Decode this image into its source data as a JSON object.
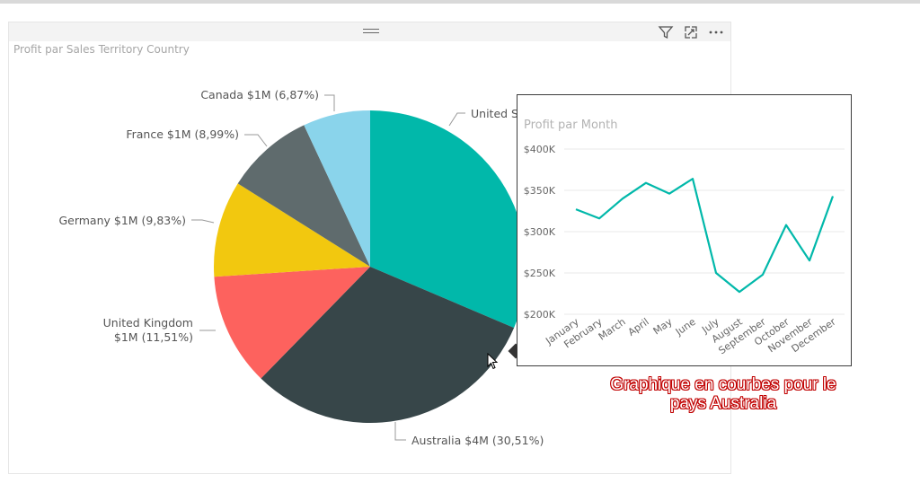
{
  "report": {
    "pie_title": "Profit par Sales Territory Country",
    "header_icons": [
      "filter-icon",
      "focus-mode-icon",
      "more-options-icon"
    ]
  },
  "chart_data": [
    {
      "type": "pie",
      "title": "Profit par Sales Territory Country",
      "slices": [
        {
          "name": "United States",
          "share": 31.0,
          "color": "#01b8aa",
          "label": "United S"
        },
        {
          "name": "Australia",
          "share": 30.51,
          "color": "#374649",
          "label": "Australia $4M (30,51%)"
        },
        {
          "name": "United Kingdom",
          "share": 11.51,
          "color": "#fd625e",
          "label": "United Kingdom",
          "label2": "$1M (11,51%)"
        },
        {
          "name": "Germany",
          "share": 9.83,
          "color": "#f2c80f",
          "label": "Germany $1M (9,83%)"
        },
        {
          "name": "France",
          "share": 8.99,
          "color": "#5f6b6d",
          "label": "France $1M (8,99%)"
        },
        {
          "name": "Canada",
          "share": 6.87,
          "color": "#8ad4eb",
          "label": "Canada $1M (6,87%)"
        }
      ]
    },
    {
      "type": "line",
      "title": "Profit par Month",
      "categories": [
        "January",
        "February",
        "March",
        "April",
        "May",
        "June",
        "July",
        "August",
        "September",
        "October",
        "November",
        "December"
      ],
      "series": [
        {
          "values": [
            327000,
            316000,
            340000,
            359000,
            346000,
            364000,
            250000,
            227000,
            248000,
            308000,
            265000,
            343000
          ],
          "color": "#01b8aa"
        }
      ],
      "y_ticks": [
        "$200K",
        "$250K",
        "$300K",
        "$350K",
        "$400K"
      ],
      "ylim": [
        200000,
        400000
      ],
      "grid": true
    }
  ],
  "caption": {
    "line1": "Graphique en courbes pour le",
    "line2": "pays Australia"
  }
}
